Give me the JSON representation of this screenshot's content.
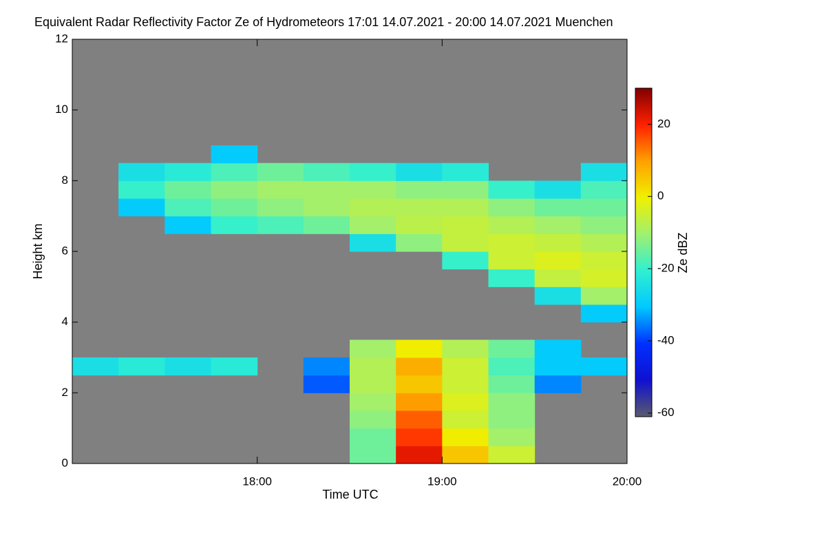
{
  "chart_data": {
    "type": "heatmap",
    "title": "Equivalent Radar Reflectivity Factor Ze of Hydrometeors   17:01 14.07.2021 - 20:00 14.07.2021 Muenchen",
    "x_label": "Time UTC",
    "y_label": "Height km",
    "colorbar_label": "Ze dBZ",
    "xlim": [
      17,
      20
    ],
    "ylim": [
      0,
      12
    ],
    "xticks": [
      {
        "value": 18,
        "label": "18:00"
      },
      {
        "value": 19,
        "label": "19:00"
      },
      {
        "value": 20,
        "label": "20:00"
      }
    ],
    "yticks": [
      0,
      2,
      4,
      6,
      8,
      10,
      12
    ],
    "clim": [
      -61,
      30
    ],
    "cticks": [
      -60,
      -40,
      -20,
      0,
      20
    ],
    "background": "#808080",
    "colorscale": [
      "#5a5a6e",
      "#1010d0",
      "#0030ff",
      "#00c8ff",
      "#30f0d0",
      "#a0f070",
      "#f0f000",
      "#ffa000",
      "#ff2000",
      "#800000"
    ],
    "x_edges": [
      17,
      17.25,
      17.5,
      17.75,
      18,
      18.25,
      18.5,
      18.75,
      19,
      19.25,
      19.5,
      19.75,
      20
    ],
    "y_edges": [
      0,
      0.5,
      1,
      1.5,
      2,
      2.5,
      3,
      3.5,
      4,
      4.5,
      5,
      5.5,
      6,
      6.5,
      7,
      7.5,
      8,
      8.5,
      9
    ],
    "z": [
      [
        null,
        null,
        null,
        null,
        null,
        null,
        -15,
        22,
        5,
        -5,
        null,
        null
      ],
      [
        null,
        null,
        null,
        null,
        null,
        null,
        -15,
        18,
        0,
        -10,
        null,
        null
      ],
      [
        null,
        null,
        null,
        null,
        null,
        null,
        -12,
        15,
        -5,
        -12,
        null,
        null
      ],
      [
        null,
        null,
        null,
        null,
        null,
        null,
        -10,
        10,
        -3,
        -12,
        null,
        null
      ],
      [
        null,
        null,
        null,
        null,
        null,
        -38,
        -8,
        5,
        -5,
        -15,
        -35,
        null
      ],
      [
        -25,
        -22,
        -25,
        -22,
        null,
        -35,
        -8,
        8,
        -5,
        -18,
        -30,
        -30
      ],
      [
        null,
        null,
        null,
        null,
        null,
        null,
        -10,
        0,
        -8,
        -15,
        -30,
        null
      ],
      [
        null,
        null,
        null,
        null,
        null,
        null,
        null,
        null,
        null,
        null,
        null,
        null
      ],
      [
        null,
        null,
        null,
        null,
        null,
        null,
        null,
        null,
        null,
        null,
        null,
        -30
      ],
      [
        null,
        null,
        null,
        null,
        null,
        null,
        null,
        null,
        null,
        null,
        -25,
        -10
      ],
      [
        null,
        null,
        null,
        null,
        null,
        null,
        null,
        null,
        null,
        -20,
        -6,
        -4
      ],
      [
        null,
        null,
        null,
        null,
        null,
        null,
        null,
        null,
        -20,
        -5,
        -3,
        -5
      ],
      [
        null,
        null,
        null,
        null,
        null,
        null,
        -25,
        -12,
        -6,
        -5,
        -6,
        -8
      ],
      [
        null,
        null,
        -30,
        -20,
        -18,
        -15,
        -10,
        -7,
        -6,
        -8,
        -10,
        -12
      ],
      [
        null,
        -30,
        -18,
        -15,
        -12,
        -10,
        -8,
        -8,
        -8,
        -12,
        -15,
        -15
      ],
      [
        null,
        -20,
        -15,
        -12,
        -10,
        -10,
        -10,
        -12,
        -12,
        -20,
        -25,
        -18
      ],
      [
        null,
        -25,
        -22,
        -18,
        -15,
        -18,
        -20,
        -25,
        -22,
        null,
        null,
        -25
      ],
      [
        null,
        null,
        null,
        -30,
        null,
        null,
        null,
        null,
        null,
        null,
        null,
        null
      ]
    ]
  }
}
